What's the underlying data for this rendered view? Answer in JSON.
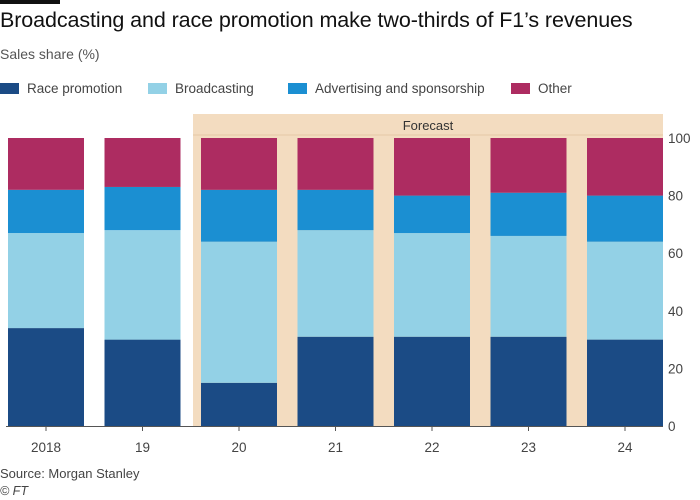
{
  "colors": {
    "race_promotion": "#1b4b85",
    "broadcasting": "#93d1e6",
    "advertising": "#1b8fd2",
    "other": "#ad2c61",
    "forecast_band": "#f3dcc0",
    "axis": "#555555",
    "grid": "#d8d0c8"
  },
  "chart_data": {
    "type": "bar",
    "stacked": true,
    "title": "Broadcasting and race promotion make two-thirds of F1’s revenues",
    "subtitle": "Sales share (%)",
    "categories": [
      "2018",
      "19",
      "20",
      "21",
      "22",
      "23",
      "24"
    ],
    "series": [
      {
        "key": "race_promotion",
        "name": "Race promotion",
        "values": [
          34,
          30,
          15,
          31,
          31,
          31,
          30
        ]
      },
      {
        "key": "broadcasting",
        "name": "Broadcasting",
        "values": [
          33,
          38,
          49,
          37,
          36,
          35,
          34
        ]
      },
      {
        "key": "advertising",
        "name": "Advertising and sponsorship",
        "values": [
          15,
          15,
          18,
          14,
          13,
          15,
          16
        ]
      },
      {
        "key": "other",
        "name": "Other",
        "values": [
          18,
          17,
          18,
          18,
          20,
          19,
          20
        ]
      }
    ],
    "ylim": [
      0,
      100
    ],
    "yticks": [
      0,
      20,
      40,
      60,
      80,
      100
    ],
    "forecast_label": "Forecast",
    "forecast_from_index": 2,
    "xlabel": "",
    "ylabel": "",
    "grid": false,
    "legend_position": "top-left",
    "source": "Source: Morgan Stanley",
    "credit": "© FT"
  }
}
